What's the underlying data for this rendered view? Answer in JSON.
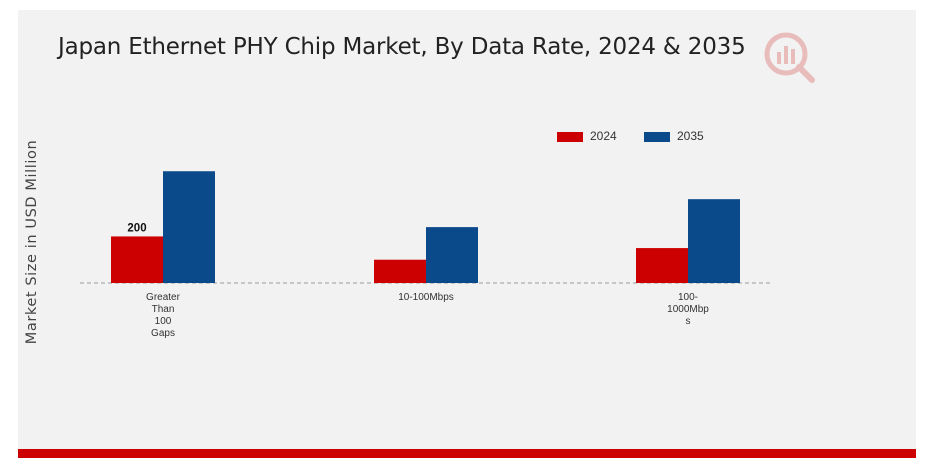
{
  "chart_data": {
    "type": "bar",
    "title": "Japan Ethernet PHY Chip Market, By Data Rate, 2024 & 2035",
    "ylabel": "Market Size in USD Million",
    "xlabel": "",
    "categories": [
      "Greater Than 100 Gaps",
      "10-100Mbps",
      "100-1000Mbps"
    ],
    "category_lines": [
      [
        "Greater",
        "Than",
        "100",
        "Gaps"
      ],
      [
        "10-100Mbps"
      ],
      [
        "100-",
        "1000Mbp",
        "s"
      ]
    ],
    "series": [
      {
        "name": "2024",
        "color": "#cc0000",
        "values": [
          200,
          100,
          150
        ]
      },
      {
        "name": "2035",
        "color": "#0a4a8a",
        "values": [
          480,
          240,
          360
        ]
      }
    ],
    "data_labels": [
      {
        "series": 0,
        "index": 0,
        "text": "200"
      }
    ],
    "ylim": [
      0,
      700
    ],
    "grid": false,
    "legend_position": "top-right",
    "baseline": "dashed"
  }
}
